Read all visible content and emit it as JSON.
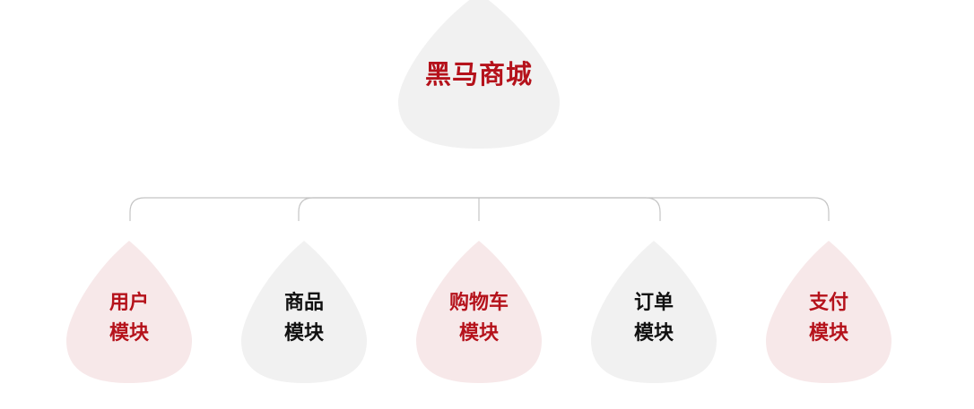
{
  "colors": {
    "accent_red": "#b5121b",
    "text_dark": "#111111",
    "fill_gray": "#f1f1f1",
    "fill_pink": "#f7e8e9",
    "line_gray": "#c4c4c4"
  },
  "root": {
    "label": "黑马商城",
    "color": "#b5121b",
    "fill": "#f1f1f1"
  },
  "modules": [
    {
      "line1": "用户",
      "line2": "模块",
      "color": "#b5121b",
      "fill": "#f7e8e9"
    },
    {
      "line1": "商品",
      "line2": "模块",
      "color": "#111111",
      "fill": "#f1f1f1"
    },
    {
      "line1": "购物车",
      "line2": "模块",
      "color": "#b5121b",
      "fill": "#f7e8e9"
    },
    {
      "line1": "订单",
      "line2": "模块",
      "color": "#111111",
      "fill": "#f1f1f1"
    },
    {
      "line1": "支付",
      "line2": "模块",
      "color": "#b5121b",
      "fill": "#f7e8e9"
    }
  ]
}
